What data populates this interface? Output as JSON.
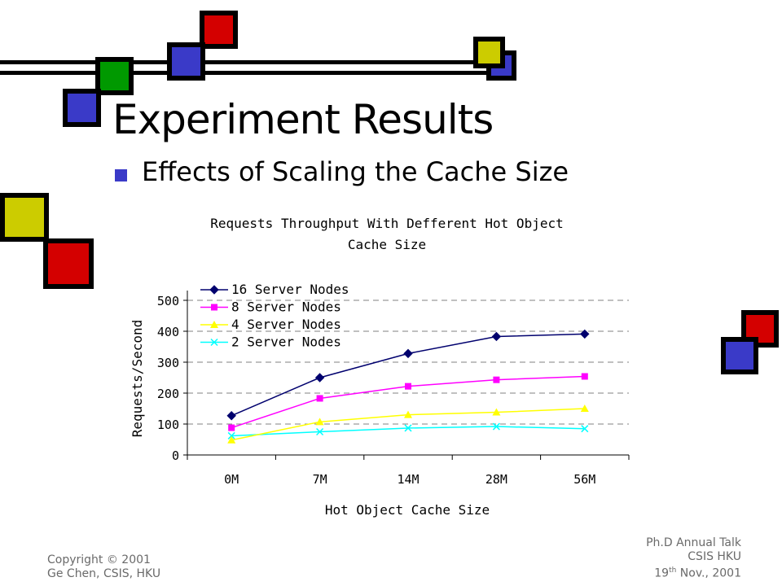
{
  "slide": {
    "title": "Experiment Results",
    "bullet": "Effects of Scaling the Cache Size",
    "footer_left": {
      "line1": "Copyright © 2001",
      "line2": "Ge Chen, CSIS, HKU"
    },
    "footer_right": {
      "line1": "Ph.D Annual Talk",
      "line2": "CSIS HKU",
      "line3_day": "19",
      "line3_sup": "th",
      "line3_rest": " Nov., 2001"
    }
  },
  "colors": {
    "blue": "#3a3ac8",
    "red": "#d40000",
    "green": "#009900",
    "yellow": "#cccc00",
    "series_16": "#00006e",
    "series_8": "#ff00ff",
    "series_4": "#ffff00",
    "series_2": "#00ffff",
    "grid": "#808080"
  },
  "chart_data": {
    "type": "line",
    "title": "Requests Throughput With Defferent Hot Object Cache Size",
    "title_line1": "Requests Throughput With Defferent Hot Object",
    "title_line2": "Cache Size",
    "xlabel": "Hot Object Cache Size",
    "ylabel": "Requests/Second",
    "categories": [
      "0M",
      "7M",
      "14M",
      "28M",
      "56M"
    ],
    "ylim": [
      0,
      500
    ],
    "yticks": [
      "0",
      "100",
      "200",
      "300",
      "400",
      "500"
    ],
    "grid": "horizontal dashed",
    "legend_position": "top-left",
    "series": [
      {
        "name": "16 Server Nodes",
        "marker": "diamond",
        "color": "#00006e",
        "values": [
          127,
          250,
          328,
          383,
          391
        ]
      },
      {
        "name": "8 Server Nodes",
        "marker": "square",
        "color": "#ff00ff",
        "values": [
          88,
          183,
          222,
          243,
          254
        ]
      },
      {
        "name": "4 Server Nodes",
        "marker": "triangle",
        "color": "#ffff00",
        "values": [
          48,
          107,
          130,
          138,
          150
        ]
      },
      {
        "name": "2 Server Nodes",
        "marker": "x",
        "color": "#00ffff",
        "values": [
          62,
          75,
          87,
          92,
          85
        ]
      }
    ]
  }
}
